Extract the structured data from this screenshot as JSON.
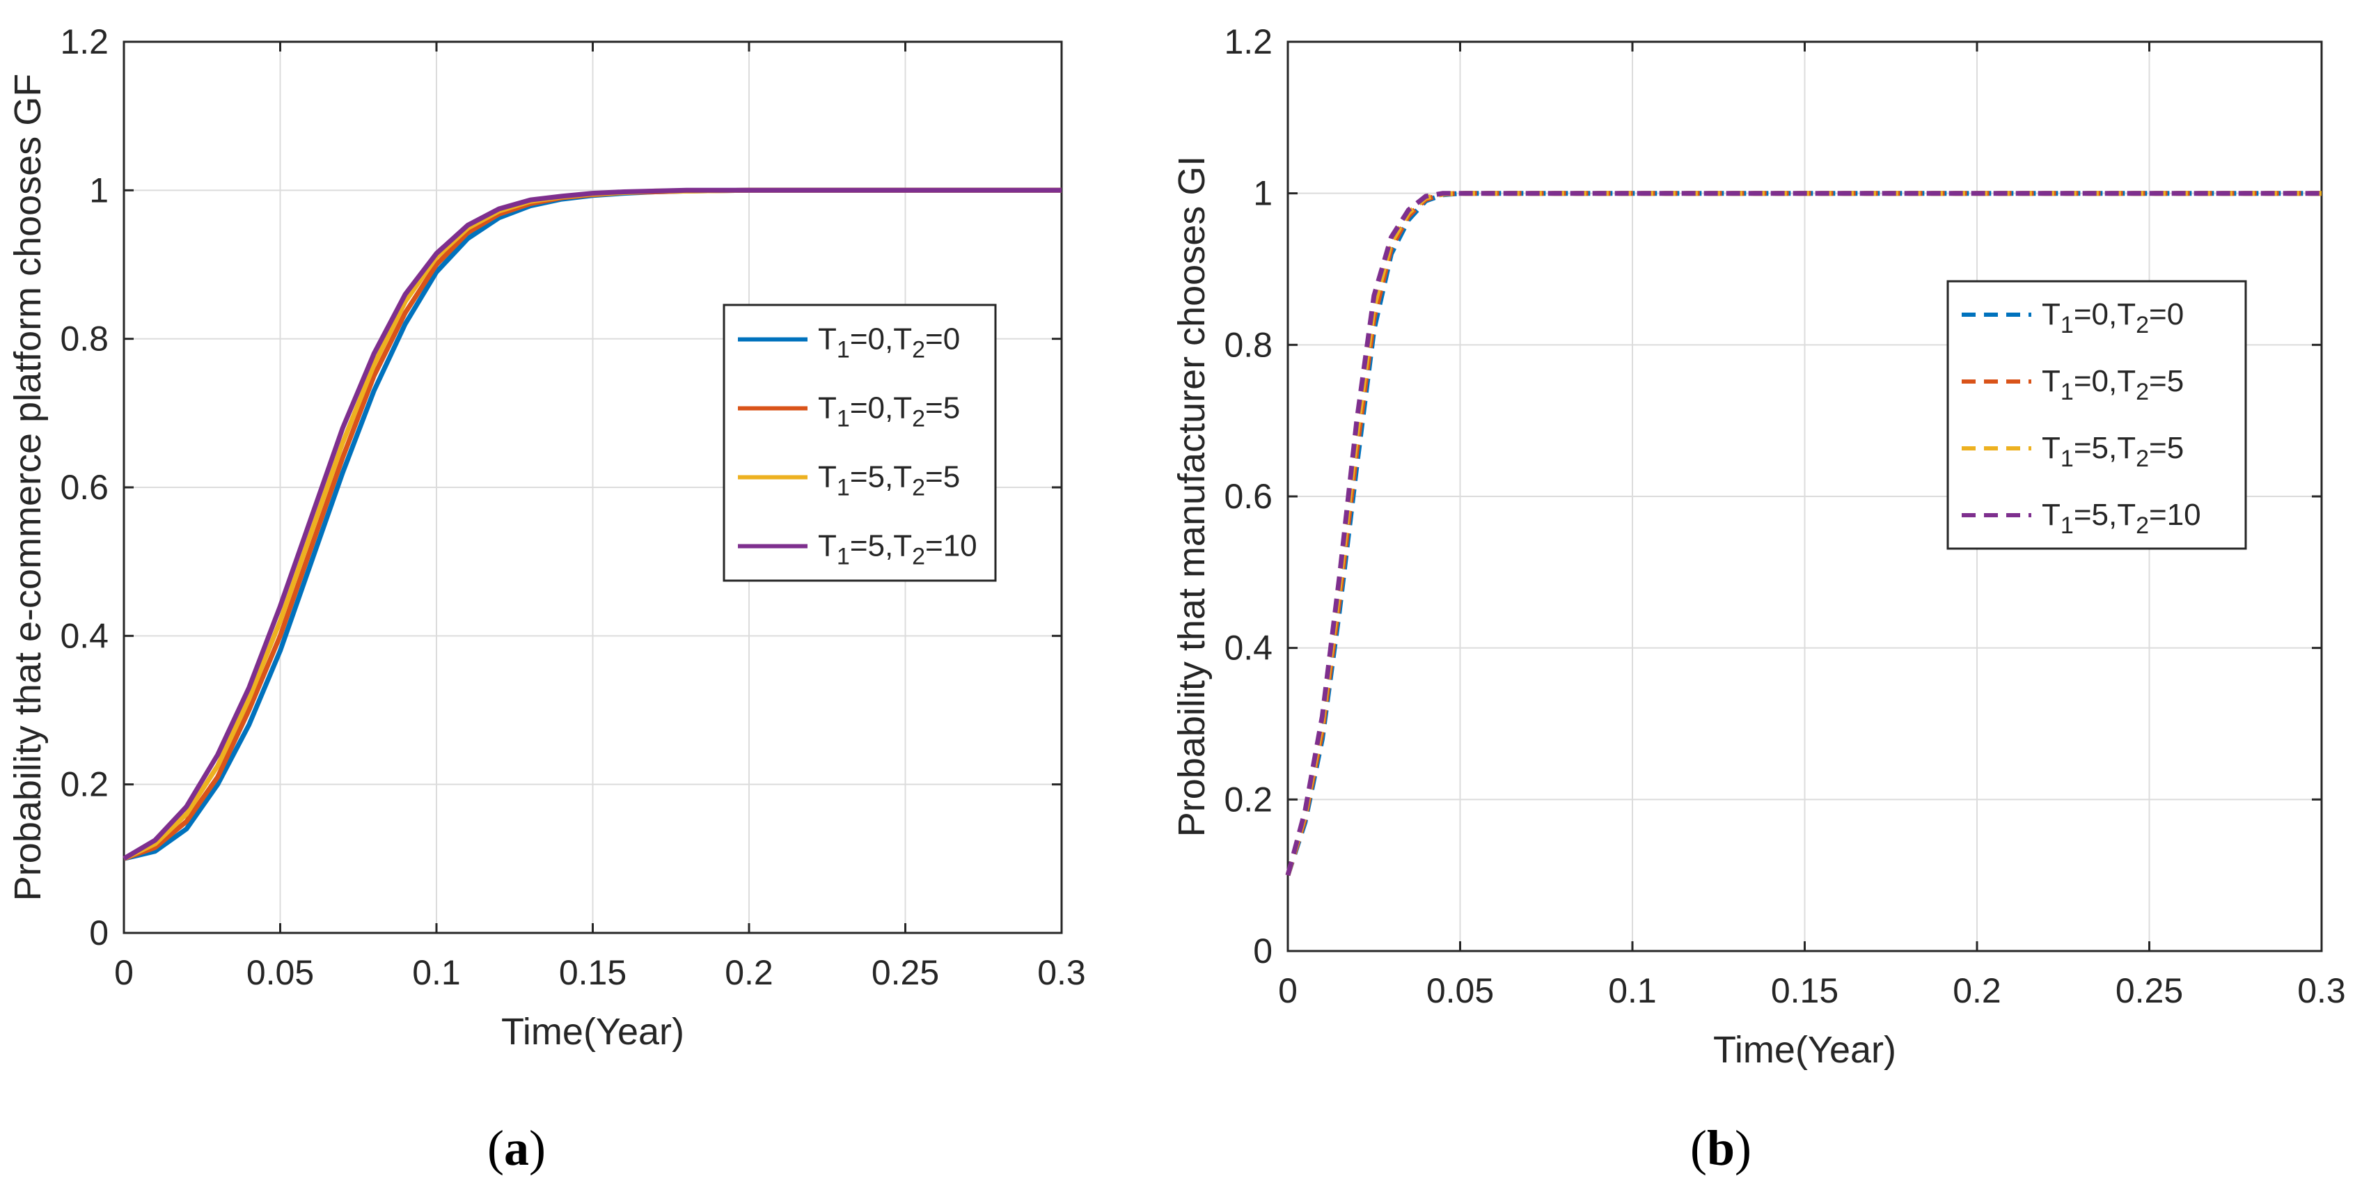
{
  "chart_data": [
    {
      "panel": "(a)",
      "panel_letter": "a",
      "type": "line",
      "title": "",
      "xlabel": "Time(Year)",
      "ylabel": "Probability that e-commerce platform chooses GF",
      "xlim": [
        0,
        0.3
      ],
      "ylim": [
        0,
        1.2
      ],
      "xticks": [
        "0",
        "0.05",
        "0.1",
        "0.15",
        "0.2",
        "0.25",
        "0.3"
      ],
      "yticks": [
        "0",
        "0.2",
        "0.4",
        "0.6",
        "0.8",
        "1",
        "1.2"
      ],
      "grid": true,
      "legend_position": "right-center",
      "line_style": "solid",
      "x": [
        0,
        0.01,
        0.02,
        0.03,
        0.04,
        0.05,
        0.06,
        0.07,
        0.08,
        0.09,
        0.1,
        0.11,
        0.12,
        0.13,
        0.14,
        0.15,
        0.16,
        0.17,
        0.18,
        0.2,
        0.25,
        0.3
      ],
      "series": [
        {
          "name_parts": {
            "t1": "0",
            "t2": "0"
          },
          "color": "#0072BD",
          "values": [
            0.1,
            0.11,
            0.14,
            0.2,
            0.28,
            0.38,
            0.5,
            0.62,
            0.73,
            0.82,
            0.89,
            0.935,
            0.963,
            0.979,
            0.988,
            0.993,
            0.996,
            0.998,
            0.999,
            1.0,
            1.0,
            1.0
          ]
        },
        {
          "name_parts": {
            "t1": "0",
            "t2": "5"
          },
          "color": "#D95319",
          "values": [
            0.1,
            0.115,
            0.15,
            0.21,
            0.3,
            0.4,
            0.52,
            0.64,
            0.75,
            0.835,
            0.9,
            0.943,
            0.968,
            0.982,
            0.99,
            0.994,
            0.997,
            0.998,
            0.999,
            1.0,
            1.0,
            1.0
          ]
        },
        {
          "name_parts": {
            "t1": "5",
            "t2": "5"
          },
          "color": "#EDB120",
          "values": [
            0.1,
            0.12,
            0.16,
            0.225,
            0.315,
            0.42,
            0.54,
            0.66,
            0.765,
            0.85,
            0.91,
            0.949,
            0.972,
            0.985,
            0.991,
            0.995,
            0.997,
            0.999,
            0.999,
            1.0,
            1.0,
            1.0
          ]
        },
        {
          "name_parts": {
            "t1": "5",
            "t2": "10"
          },
          "color": "#7E2F8E",
          "values": [
            0.1,
            0.125,
            0.17,
            0.24,
            0.33,
            0.44,
            0.56,
            0.68,
            0.78,
            0.86,
            0.915,
            0.953,
            0.975,
            0.987,
            0.992,
            0.996,
            0.998,
            0.999,
            1.0,
            1.0,
            1.0,
            1.0
          ]
        }
      ]
    },
    {
      "panel": "(b)",
      "panel_letter": "b",
      "type": "line",
      "title": "",
      "xlabel": "Time(Year)",
      "ylabel": "Probability that manufacturer chooses GI",
      "xlim": [
        0,
        0.3
      ],
      "ylim": [
        0,
        1.2
      ],
      "xticks": [
        "0",
        "0.05",
        "0.1",
        "0.15",
        "0.2",
        "0.25",
        "0.3"
      ],
      "yticks": [
        "0",
        "0.2",
        "0.4",
        "0.6",
        "0.8",
        "1",
        "1.2"
      ],
      "grid": true,
      "legend_position": "right-center",
      "line_style": "dashed",
      "x": [
        0,
        0.005,
        0.01,
        0.015,
        0.02,
        0.025,
        0.03,
        0.035,
        0.04,
        0.045,
        0.05,
        0.1,
        0.15,
        0.2,
        0.25,
        0.3
      ],
      "series": [
        {
          "name_parts": {
            "t1": "0",
            "t2": "0"
          },
          "color": "#0072BD",
          "values": [
            0.1,
            0.17,
            0.28,
            0.45,
            0.64,
            0.82,
            0.92,
            0.965,
            0.99,
            0.998,
            1.0,
            1.0,
            1.0,
            1.0,
            1.0,
            1.0
          ]
        },
        {
          "name_parts": {
            "t1": "0",
            "t2": "5"
          },
          "color": "#D95319",
          "values": [
            0.1,
            0.175,
            0.29,
            0.465,
            0.66,
            0.835,
            0.928,
            0.97,
            0.992,
            0.999,
            1.0,
            1.0,
            1.0,
            1.0,
            1.0,
            1.0
          ]
        },
        {
          "name_parts": {
            "t1": "5",
            "t2": "5"
          },
          "color": "#EDB120",
          "values": [
            0.1,
            0.18,
            0.3,
            0.48,
            0.68,
            0.85,
            0.935,
            0.974,
            0.994,
            0.999,
            1.0,
            1.0,
            1.0,
            1.0,
            1.0,
            1.0
          ]
        },
        {
          "name_parts": {
            "t1": "5",
            "t2": "10"
          },
          "color": "#7E2F8E",
          "values": [
            0.1,
            0.185,
            0.31,
            0.495,
            0.7,
            0.865,
            0.942,
            0.978,
            0.996,
            1.0,
            1.0,
            1.0,
            1.0,
            1.0,
            1.0,
            1.0
          ]
        }
      ]
    }
  ]
}
